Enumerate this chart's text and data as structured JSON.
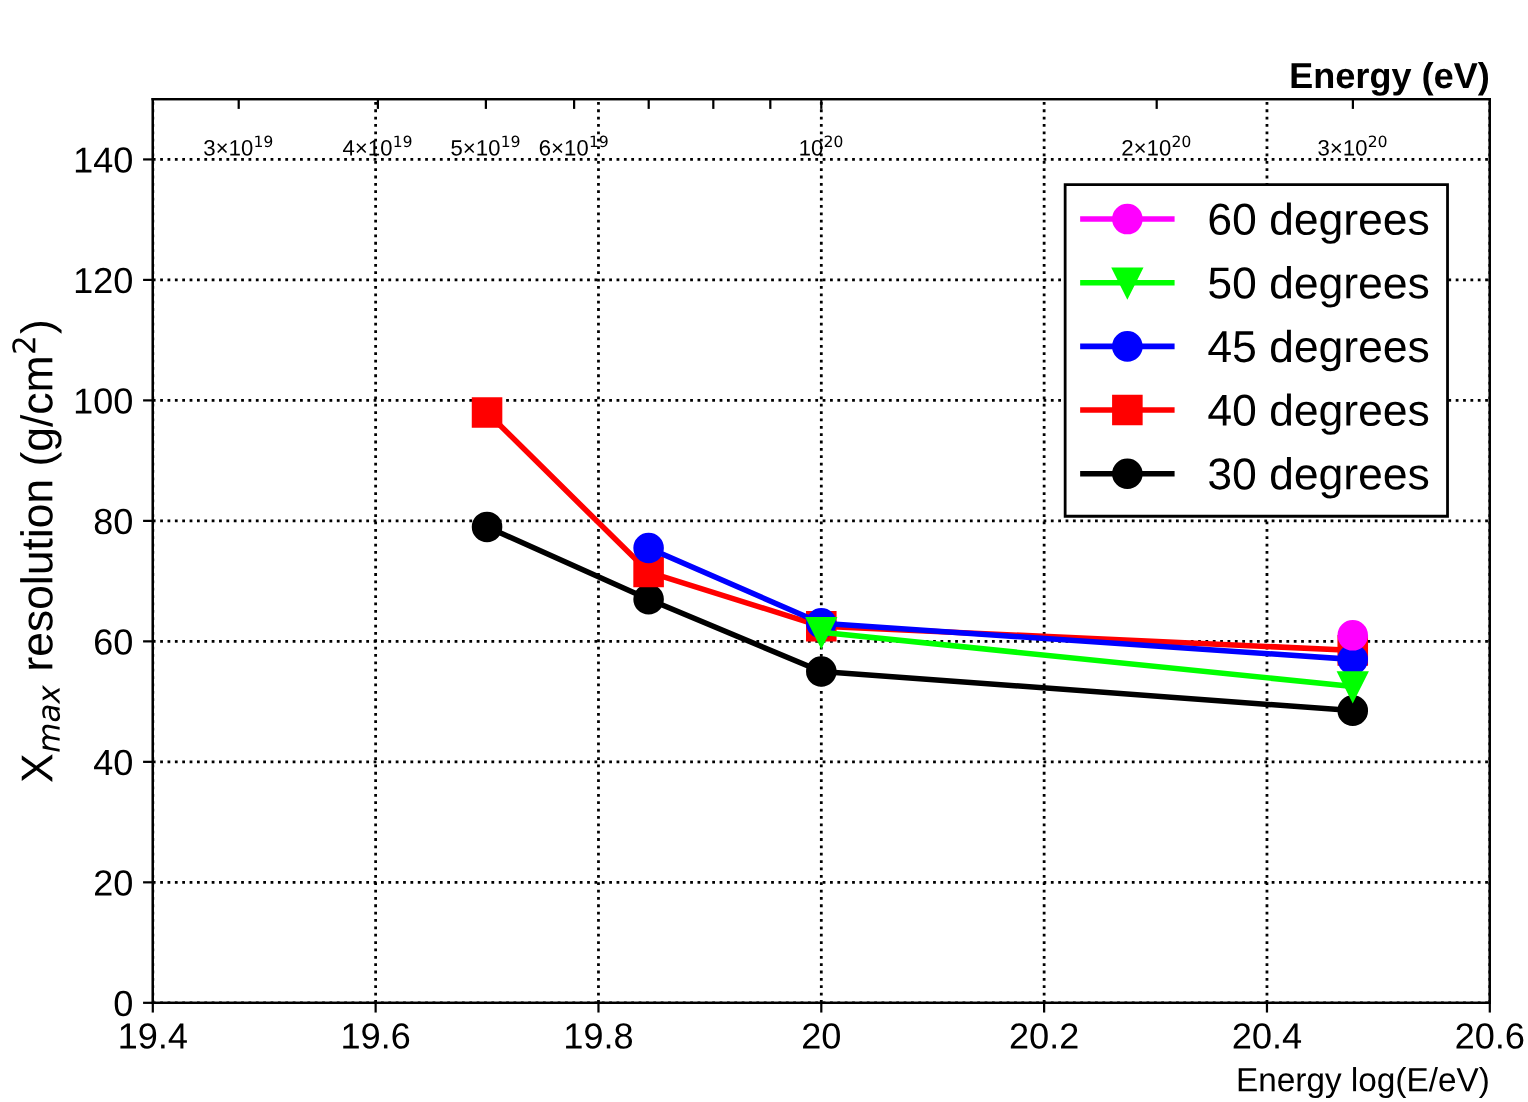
{
  "chart_data": {
    "type": "line",
    "xlabel": "Energy log(E/eV)",
    "ylabel": "X$_{max}$ resolution (g/cm$^{2}$)",
    "x2label": "Energy (eV)",
    "xlim": [
      19.4,
      20.6
    ],
    "xticks": [
      19.4,
      19.6,
      19.8,
      20,
      20.2,
      20.4,
      20.6
    ],
    "ylim": [
      0,
      150
    ],
    "yticks": [
      0,
      20,
      40,
      60,
      80,
      100,
      120,
      140
    ],
    "log": "x2",
    "x2lim": [
      2.512e+19,
      3.981e+20
    ],
    "x2ticks": [
      {
        "value": 3e+19,
        "label": "3×10$^{19}$"
      },
      {
        "value": 4e+19,
        "label": "4×10$^{19}$"
      },
      {
        "value": 5e+19,
        "label": "5×10$^{19}$"
      },
      {
        "value": 6e+19,
        "label": "6×10$^{19}$"
      },
      {
        "value": 7e+19,
        "label": null
      },
      {
        "value": 8e+19,
        "label": null
      },
      {
        "value": 9e+19,
        "label": null
      },
      {
        "value": 1e+20,
        "label": "10$^{20}$"
      },
      {
        "value": 2e+20,
        "label": "2×10$^{20}$"
      },
      {
        "value": 3e+20,
        "label": "3×10$^{20}$"
      }
    ],
    "grid": true,
    "legend": "top right",
    "series": [
      {
        "name": "60 degrees",
        "color": "#ff00ff",
        "marker": "circle",
        "x": [
          20.477
        ],
        "values": [
          61
        ]
      },
      {
        "name": "50 degrees",
        "color": "#00ff00",
        "marker": "triangle",
        "x": [
          20,
          20.477
        ],
        "values": [
          61.5,
          52.5
        ]
      },
      {
        "name": "45 degrees",
        "color": "#0000ff",
        "marker": "circle",
        "x": [
          19.845,
          20,
          20.477
        ],
        "values": [
          75.5,
          63,
          57
        ]
      },
      {
        "name": "40 degrees",
        "color": "#ff0000",
        "marker": "square",
        "x": [
          19.7,
          19.845,
          20,
          20.477
        ],
        "values": [
          98,
          71.5,
          62.5,
          58.5
        ]
      },
      {
        "name": "30 degrees",
        "color": "#000000",
        "marker": "circle",
        "x": [
          19.7,
          19.845,
          20,
          20.477
        ],
        "values": [
          79,
          67,
          55,
          48.5
        ]
      }
    ]
  }
}
